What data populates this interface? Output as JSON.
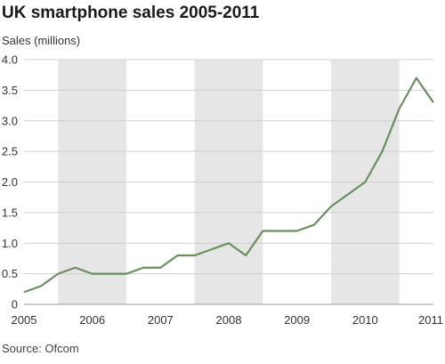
{
  "chart_data": {
    "type": "line",
    "title": "UK smartphone sales 2005-2011",
    "ylabel": "Sales (millions)",
    "source": "Source: Ofcom",
    "ylim": [
      0,
      4.0
    ],
    "yticks": [
      "0",
      "0.5",
      "1.0",
      "1.5",
      "2.0",
      "2.5",
      "3.0",
      "3.5",
      "4.0"
    ],
    "xlim": [
      0,
      24
    ],
    "years": [
      "2005",
      "2006",
      "2007",
      "2008",
      "2009",
      "2010",
      "2011"
    ],
    "shaded_years": [
      "2006",
      "2008",
      "2010"
    ],
    "grid": "horizontal",
    "line_color": "#6a8f5f",
    "band_color": "#e6e6e6",
    "series": [
      {
        "x": [
          0,
          1,
          2,
          3,
          4,
          5,
          6,
          7,
          8,
          9,
          10,
          11,
          12,
          13,
          14,
          15,
          16,
          17,
          18,
          19,
          20,
          21,
          22,
          23,
          24
        ],
        "values": [
          0.2,
          0.3,
          0.5,
          0.6,
          0.5,
          0.5,
          0.5,
          0.6,
          0.6,
          0.8,
          0.8,
          0.9,
          1.0,
          0.8,
          1.2,
          1.2,
          1.2,
          1.3,
          1.6,
          1.8,
          2.0,
          2.5,
          3.2,
          3.7,
          3.3
        ]
      }
    ]
  }
}
